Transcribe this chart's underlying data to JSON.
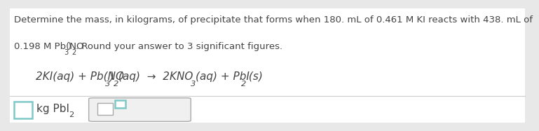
{
  "background_color": "#e8e8e8",
  "panel_color": "#ffffff",
  "line1": "Determine the mass, in kilograms, of precipitate that forms when 180. mL of 0.461 M KI reacts with 438. mL of",
  "text_color": "#444444",
  "eq_color": "#444444",
  "box1_color": "#7ec8c8",
  "box2_inner_color": "#7ec8c8",
  "fontsize_main": 9.5,
  "fontsize_eq": 11.0
}
